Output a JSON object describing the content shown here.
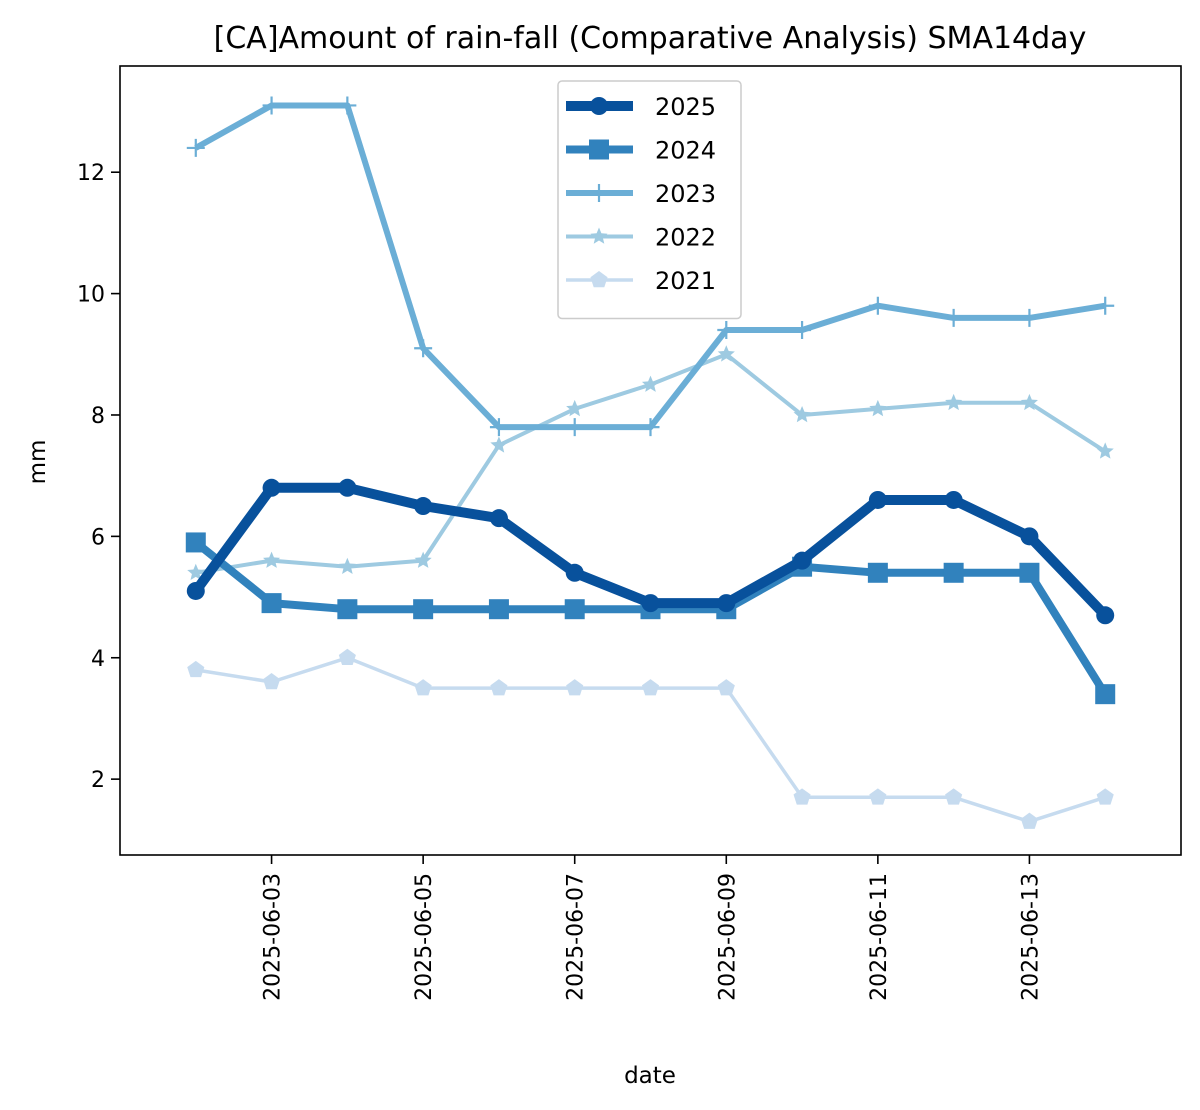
{
  "chart_data": {
    "type": "line",
    "title": "[CA]Amount of rain-fall (Comparative Analysis) SMA14day",
    "xlabel": "date",
    "ylabel": "mm",
    "x": [
      "2025-06-02",
      "2025-06-03",
      "2025-06-04",
      "2025-06-05",
      "2025-06-06",
      "2025-06-07",
      "2025-06-08",
      "2025-06-09",
      "2025-06-10",
      "2025-06-11",
      "2025-06-12",
      "2025-06-13",
      "2025-06-14"
    ],
    "xticks": [
      "2025-06-03",
      "2025-06-05",
      "2025-06-07",
      "2025-06-09",
      "2025-06-11",
      "2025-06-13"
    ],
    "yticks": [
      2,
      4,
      6,
      8,
      10,
      12
    ],
    "xlim": [
      "2025-06-01",
      "2025-06-15"
    ],
    "ylim": [
      0.75,
      13.75
    ],
    "grid": false,
    "legend_position": "upper center",
    "series": [
      {
        "name": "2025",
        "color": "#08519c",
        "marker": "circle",
        "values": [
          5.1,
          6.8,
          6.8,
          6.5,
          6.3,
          5.4,
          4.9,
          4.9,
          5.6,
          6.6,
          6.6,
          6.0,
          4.7
        ]
      },
      {
        "name": "2024",
        "color": "#3182bd",
        "marker": "square",
        "values": [
          5.9,
          4.9,
          4.8,
          4.8,
          4.8,
          4.8,
          4.8,
          4.8,
          5.5,
          5.4,
          5.4,
          5.4,
          3.4
        ]
      },
      {
        "name": "2023",
        "color": "#6baed6",
        "marker": "plus",
        "values": [
          12.4,
          13.1,
          13.1,
          9.1,
          7.8,
          7.8,
          7.8,
          9.4,
          9.4,
          9.8,
          9.6,
          9.6,
          9.8
        ]
      },
      {
        "name": "2022",
        "color": "#9ecae1",
        "marker": "star",
        "values": [
          5.4,
          5.6,
          5.5,
          5.6,
          7.5,
          8.1,
          8.5,
          9.0,
          8.0,
          8.1,
          8.2,
          8.2,
          7.4
        ]
      },
      {
        "name": "2021",
        "color": "#c6dbef",
        "marker": "pentagon",
        "values": [
          3.8,
          3.6,
          4.0,
          3.5,
          3.5,
          3.5,
          3.5,
          3.5,
          1.7,
          1.7,
          1.7,
          1.3,
          1.7
        ]
      }
    ]
  }
}
